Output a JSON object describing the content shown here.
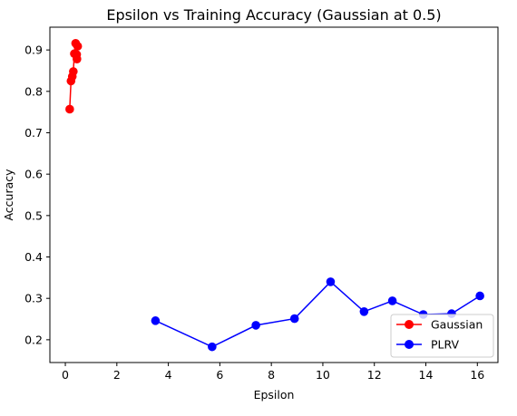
{
  "chart_data": {
    "type": "line",
    "title": "Epsilon vs Training Accuracy (Gaussian at 0.5)",
    "xlabel": "Epsilon",
    "ylabel": "Accuracy",
    "xlim": [
      -0.6,
      16.8
    ],
    "ylim": [
      0.145,
      0.955
    ],
    "x_ticks": [
      0,
      2,
      4,
      6,
      8,
      10,
      12,
      14,
      16
    ],
    "y_ticks": [
      0.2,
      0.3,
      0.4,
      0.5,
      0.6,
      0.7,
      0.8,
      0.9
    ],
    "x_tick_labels": [
      "0",
      "2",
      "4",
      "6",
      "8",
      "10",
      "12",
      "14",
      "16"
    ],
    "y_tick_labels": [
      "0.2",
      "0.3",
      "0.4",
      "0.5",
      "0.6",
      "0.7",
      "0.8",
      "0.9"
    ],
    "grid": false,
    "legend_position": "lower right",
    "series": [
      {
        "name": "Gaussian",
        "color": "#ff0000",
        "marker": "circle",
        "x": [
          0.17,
          0.22,
          0.27,
          0.31,
          0.35,
          0.4,
          0.45,
          0.48,
          0.44
        ],
        "y": [
          0.757,
          0.825,
          0.836,
          0.848,
          0.891,
          0.916,
          0.878,
          0.909,
          0.889
        ]
      },
      {
        "name": "PLRV",
        "color": "#0000ff",
        "marker": "circle",
        "x": [
          3.5,
          5.7,
          7.4,
          8.9,
          10.3,
          11.6,
          12.7,
          13.9,
          15.0,
          16.1
        ],
        "y": [
          0.246,
          0.183,
          0.235,
          0.251,
          0.34,
          0.268,
          0.294,
          0.261,
          0.263,
          0.306
        ]
      }
    ]
  }
}
